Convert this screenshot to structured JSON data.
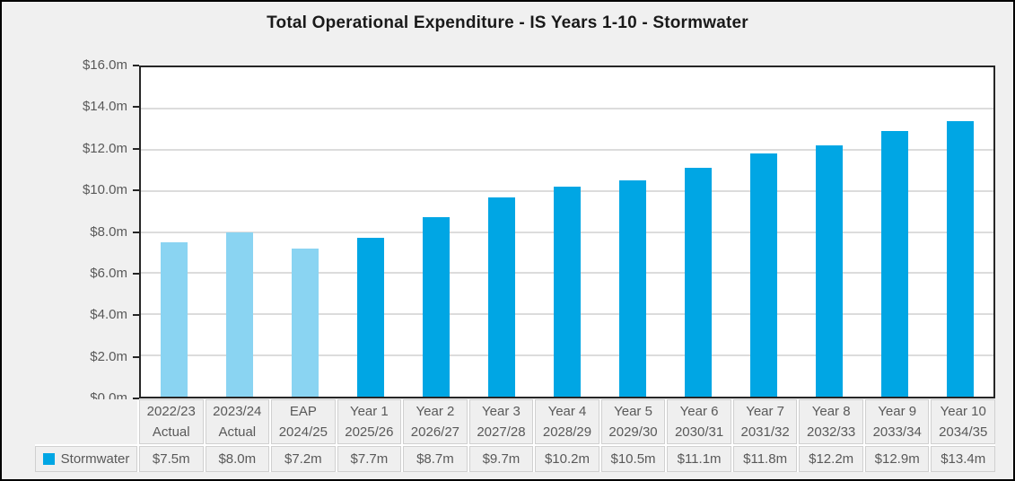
{
  "chart_data": {
    "type": "bar",
    "title": "Total Operational Expenditure - IS Years 1-10 - Stormwater",
    "categories": [
      [
        "2022/23",
        "Actual"
      ],
      [
        "2023/24",
        "Actual"
      ],
      [
        "EAP",
        "2024/25"
      ],
      [
        "Year 1",
        "2025/26"
      ],
      [
        "Year 2",
        "2026/27"
      ],
      [
        "Year 3",
        "2027/28"
      ],
      [
        "Year 4",
        "2028/29"
      ],
      [
        "Year 5",
        "2029/30"
      ],
      [
        "Year 6",
        "2030/31"
      ],
      [
        "Year 7",
        "2031/32"
      ],
      [
        "Year 8",
        "2032/33"
      ],
      [
        "Year 9",
        "2033/34"
      ],
      [
        "Year 10",
        "2034/35"
      ]
    ],
    "series": [
      {
        "name": "Stormwater",
        "values": [
          7.5,
          8.0,
          7.2,
          7.7,
          8.7,
          9.7,
          10.2,
          10.5,
          11.1,
          11.8,
          12.2,
          12.9,
          13.4
        ],
        "display_values": [
          "$7.5m",
          "$8.0m",
          "$7.2m",
          "$7.7m",
          "$8.7m",
          "$9.7m",
          "$10.2m",
          "$10.5m",
          "$11.1m",
          "$11.8m",
          "$12.2m",
          "$12.9m",
          "$13.4m"
        ]
      }
    ],
    "y_ticks": [
      "$16.0m",
      "$14.0m",
      "$12.0m",
      "$10.0m",
      "$8.0m",
      "$6.0m",
      "$4.0m",
      "$2.0m",
      "$0.0m"
    ],
    "ylim": [
      0,
      16
    ],
    "xlabel": "",
    "ylabel": "",
    "grid": true,
    "legend_position": "table-left",
    "light_shaded_count": 3,
    "colors": {
      "bar_light": "#8AD4F2",
      "bar_dark": "#00A6E4"
    }
  }
}
